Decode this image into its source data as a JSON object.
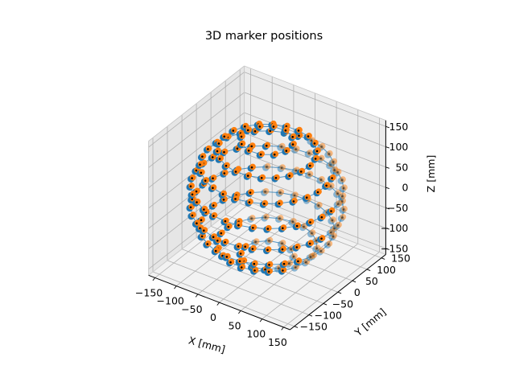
{
  "chart_data": {
    "type": "scatter",
    "projection": "3d",
    "title": "3D marker positions",
    "xlabel": "X [mm]",
    "ylabel": "Y [mm]",
    "zlabel": "Z [mm]",
    "xlim": [
      -165,
      165
    ],
    "ylim": [
      -165,
      165
    ],
    "zlim": [
      -165,
      165
    ],
    "xticks": [
      -150,
      -100,
      -50,
      0,
      50,
      100,
      150
    ],
    "yticks": [
      -150,
      -100,
      -50,
      0,
      50,
      100,
      150
    ],
    "zticks": [
      -150,
      -100,
      -50,
      0,
      50,
      100,
      150
    ],
    "xtick_labels": [
      "−150",
      "−100",
      "−50",
      "0",
      "50",
      "100",
      "150"
    ],
    "ytick_labels": [
      "−150",
      "−100",
      "−50",
      "0",
      "50",
      "100",
      "150"
    ],
    "ztick_labels": [
      "−150",
      "−100",
      "−50",
      "0",
      "50",
      "100",
      "150"
    ],
    "grid": true,
    "view": {
      "elev": 30,
      "azim": -60
    },
    "shape": "sphere",
    "sphere_radius_mm": 150,
    "ring_latitudes_deg": [
      -70,
      -50,
      -30,
      -10,
      10,
      30,
      50,
      70
    ],
    "points_per_ring": [
      12,
      22,
      28,
      32,
      32,
      28,
      22,
      12
    ],
    "series": [
      {
        "marker": "filled circle",
        "color": "#1f77b4",
        "role": "reference ring lines and markers"
      },
      {
        "marker": "filled circle",
        "color": "#ff7f0e",
        "role": "measured markers"
      },
      {
        "marker": "small dot",
        "color": "#000000",
        "role": "reconstructed markers"
      }
    ]
  }
}
